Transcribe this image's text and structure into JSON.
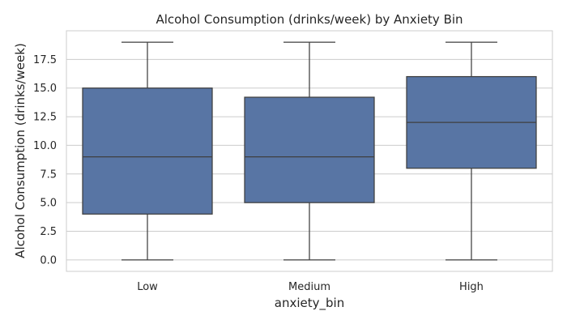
{
  "chart_data": {
    "type": "box",
    "title": "Alcohol Consumption (drinks/week) by Anxiety Bin",
    "xlabel": "anxiety_bin",
    "ylabel": "Alcohol Consumption (drinks/week)",
    "ylim": [
      -1.0,
      20.0
    ],
    "yticks": [
      0.0,
      2.5,
      5.0,
      7.5,
      10.0,
      12.5,
      15.0,
      17.5
    ],
    "ytick_labels": [
      "0.0",
      "2.5",
      "5.0",
      "7.5",
      "10.0",
      "12.5",
      "15.0",
      "17.5"
    ],
    "grid": true,
    "categories": [
      "Low",
      "Medium",
      "High"
    ],
    "boxes": [
      {
        "category": "Low",
        "min": 0,
        "q1": 4,
        "median": 9,
        "q3": 15,
        "max": 19
      },
      {
        "category": "Medium",
        "min": 0,
        "q1": 5,
        "median": 9,
        "q3": 14.2,
        "max": 19
      },
      {
        "category": "High",
        "min": 0,
        "q1": 8,
        "median": 12,
        "q3": 16,
        "max": 19
      }
    ],
    "colors": {
      "box_fill": "#5875a4",
      "box_edge": "#3f3f3f",
      "grid": "#cccccc",
      "frame": "#cccccc"
    }
  }
}
